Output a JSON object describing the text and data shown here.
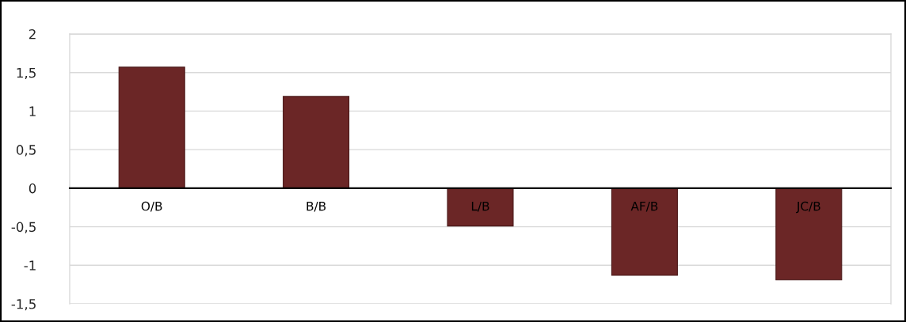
{
  "chart_data": {
    "type": "bar",
    "categories": [
      "O/B",
      "B/B",
      "L/B",
      "AF/B",
      "JC/B"
    ],
    "values": [
      1.57,
      1.19,
      -0.49,
      -1.13,
      -1.19
    ],
    "color": "#6b2626",
    "ylim": [
      -1.5,
      2
    ],
    "yticks": [
      {
        "value": -1.5,
        "label": "-1,5"
      },
      {
        "value": -1,
        "label": "-1"
      },
      {
        "value": -0.5,
        "label": "-0,5"
      },
      0,
      {
        "value": 0.5,
        "label": "0,5"
      },
      1,
      {
        "value": 1.5,
        "label": "1,5"
      },
      2
    ],
    "grid": "y",
    "legend": false
  }
}
